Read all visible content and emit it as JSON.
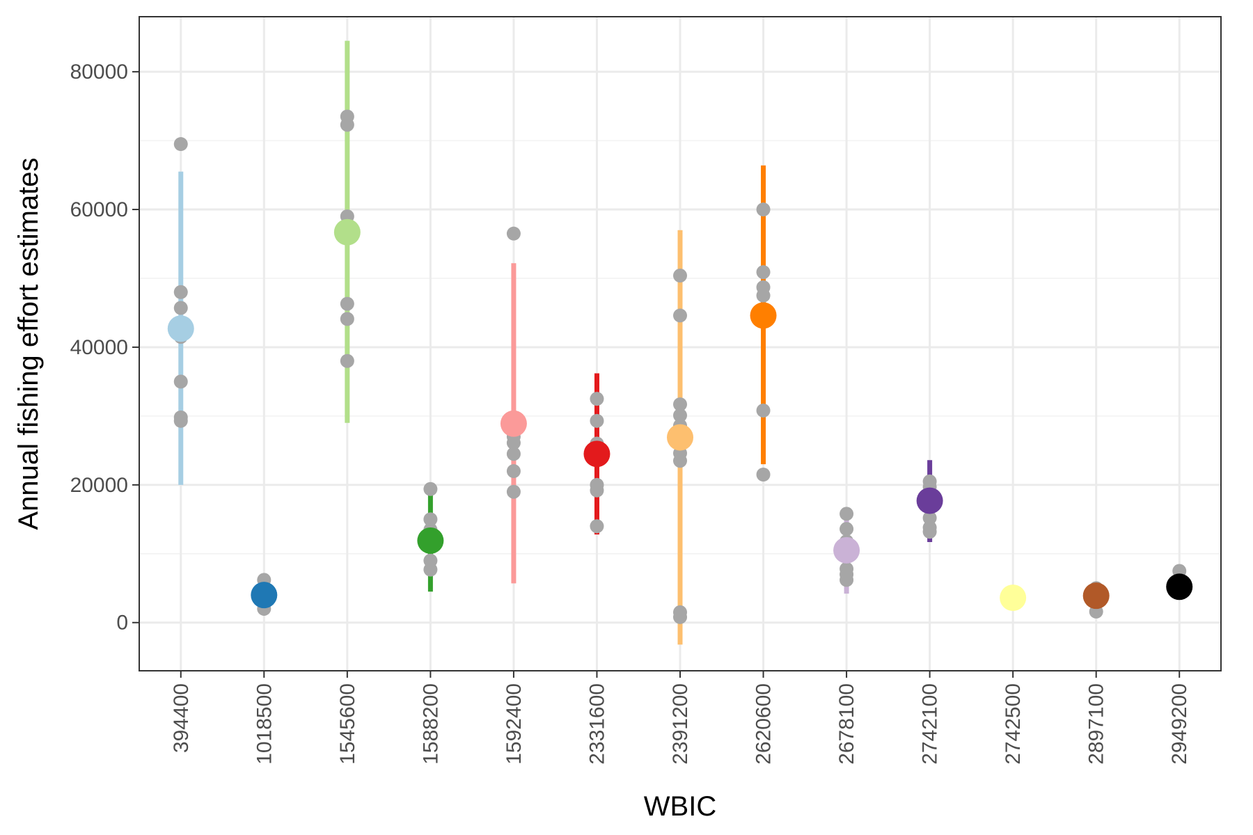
{
  "chart_data": {
    "type": "scatter",
    "xlabel": "WBIC",
    "ylabel": "Annual fishing effort estimates",
    "ylim": [
      -7000,
      88000
    ],
    "y_ticks": [
      0,
      20000,
      40000,
      60000,
      80000
    ],
    "grid": true,
    "legend": "none",
    "categories": [
      "394400",
      "1018500",
      "1545600",
      "1588200",
      "1592400",
      "2331600",
      "2391200",
      "2620600",
      "2678100",
      "2742100",
      "2742500",
      "2897100",
      "2949200"
    ],
    "colors": [
      "#a6cee3",
      "#1f78b4",
      "#b2df8a",
      "#33a02c",
      "#fb9a99",
      "#e31a1c",
      "#fdbf6f",
      "#ff7f00",
      "#cab2d6",
      "#6a3d9a",
      "#ffff99",
      "#b15928",
      "#000000"
    ],
    "observation_color": "#a6a6a6",
    "means": [
      42700,
      4000,
      56700,
      11900,
      28900,
      24500,
      26900,
      44600,
      10500,
      17700,
      3600,
      3900,
      5200
    ],
    "interval_low": [
      20000,
      1800,
      29000,
      4500,
      5700,
      12800,
      -3200,
      23000,
      4200,
      11700,
      2800,
      2800,
      4500
    ],
    "interval_high": [
      65500,
      6000,
      84500,
      19000,
      52200,
      36200,
      57000,
      66400,
      16000,
      23600,
      4400,
      4900,
      6000
    ],
    "observations": [
      [
        69500,
        48000,
        45700,
        41500,
        35000,
        29800,
        29300
      ],
      [
        6200,
        3200,
        2000
      ],
      [
        73500,
        72300,
        59000,
        46300,
        44100,
        38000
      ],
      [
        19400,
        15000,
        13500,
        11000,
        9000,
        7700
      ],
      [
        56500,
        27000,
        26100,
        24500,
        22000,
        19000
      ],
      [
        32500,
        29300,
        26000,
        20000,
        19200,
        14000
      ],
      [
        50400,
        44600,
        31700,
        30100,
        28600,
        24600,
        23500,
        1500,
        800
      ],
      [
        60000,
        50900,
        48700,
        47500,
        30800,
        21500
      ],
      [
        15800,
        13600,
        11800,
        7800,
        7000,
        6200
      ],
      [
        20500,
        19700,
        15200,
        13800,
        13200
      ],
      [
        3000,
        3200
      ],
      [
        5000,
        1600
      ],
      [
        7500,
        5500
      ]
    ]
  }
}
